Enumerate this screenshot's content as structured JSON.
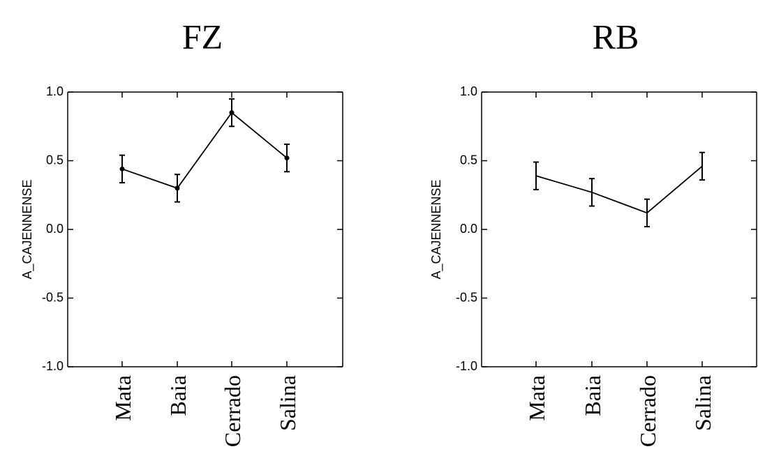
{
  "chart_data": [
    {
      "type": "line",
      "title": "FZ",
      "xlabel": "",
      "ylabel": "A_CAJENNENSE",
      "categories": [
        "Mata",
        "Baia",
        "Cerrado",
        "Salina"
      ],
      "ylim": [
        -1.0,
        1.0
      ],
      "yticks": [
        "1.0",
        "0.5",
        "0.0",
        "-0.5",
        "-1.0"
      ],
      "ytick_values": [
        1.0,
        0.5,
        0.0,
        -0.5,
        -1.0
      ],
      "show_markers": true,
      "grid": false,
      "series": [
        {
          "values": [
            0.44,
            0.3,
            0.85,
            0.52
          ],
          "err_low": [
            0.34,
            0.2,
            0.75,
            0.42
          ],
          "err_high": [
            0.54,
            0.4,
            0.95,
            0.62
          ]
        }
      ]
    },
    {
      "type": "line",
      "title": "RB",
      "xlabel": "",
      "ylabel": "A_CAJENNENSE",
      "categories": [
        "Mata",
        "Baia",
        "Cerrado",
        "Salina"
      ],
      "ylim": [
        -1.0,
        1.0
      ],
      "yticks": [
        "1.0",
        "0.5",
        "0.0",
        "-0.5",
        "-1.0"
      ],
      "ytick_values": [
        1.0,
        0.5,
        0.0,
        -0.5,
        -1.0
      ],
      "show_markers": false,
      "grid": false,
      "series": [
        {
          "values": [
            0.39,
            0.27,
            0.12,
            0.46
          ],
          "err_low": [
            0.29,
            0.17,
            0.02,
            0.36
          ],
          "err_high": [
            0.49,
            0.37,
            0.22,
            0.56
          ]
        }
      ]
    }
  ]
}
